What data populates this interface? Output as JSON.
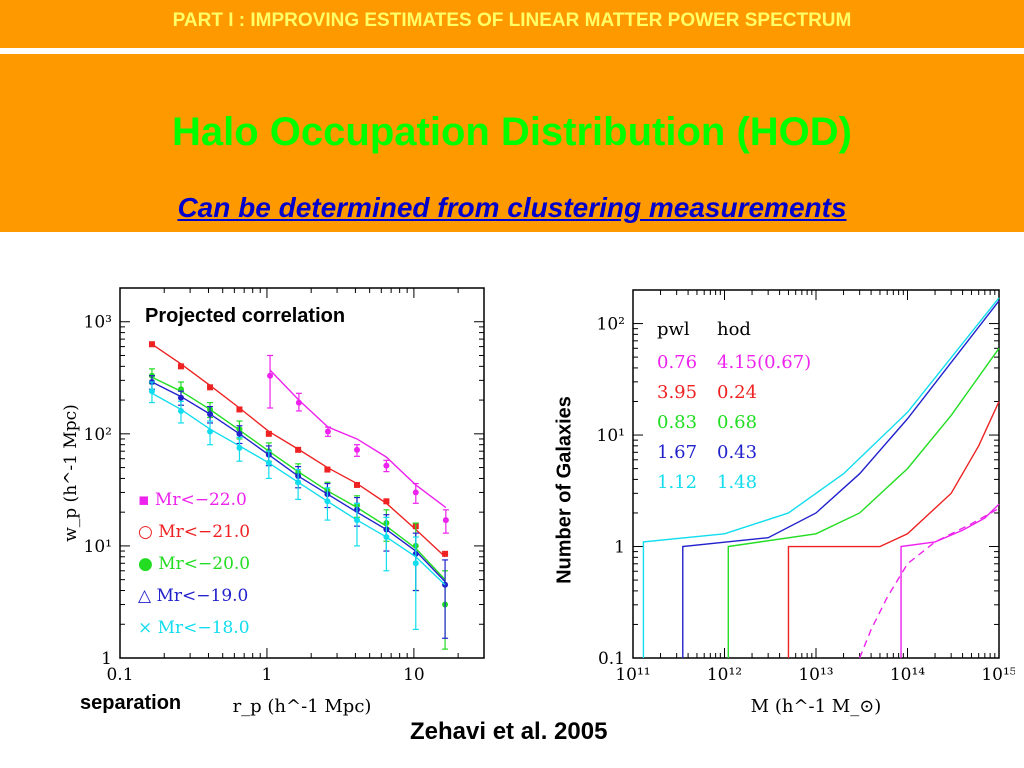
{
  "header": {
    "part_title": "PART I : IMPROVING ESTIMATES OF LINEAR MATTER POWER SPECTRUM",
    "title": "Halo Occupation Distribution (HOD)",
    "subtitle": "Can be determined from clustering measurements"
  },
  "annotations": {
    "left_plot_label": "Projected correlation",
    "left_xlabel_word": "separation",
    "right_ylabel_word": "Number of Galaxies",
    "citation": "Zehavi et al. 2005"
  },
  "colors": {
    "band": "#ff9900",
    "title": "#00ff00",
    "subtitle": "#0000cc",
    "part": "#ffff66"
  },
  "chart_data": [
    {
      "type": "scatter",
      "title": "Projected correlation",
      "xlabel": "r_p (h^-1 Mpc)",
      "ylabel": "w_p (h^-1 Mpc)",
      "xscale": "log",
      "yscale": "log",
      "xlim": [
        0.1,
        30
      ],
      "ylim": [
        1,
        2000
      ],
      "xticks": [
        {
          "v": 0.1,
          "label": "0.1"
        },
        {
          "v": 1,
          "label": "1"
        },
        {
          "v": 10,
          "label": "10"
        }
      ],
      "yticks": [
        {
          "v": 1,
          "label": "1"
        },
        {
          "v": 10,
          "label": "10¹"
        },
        {
          "v": 100,
          "label": "10²"
        },
        {
          "v": 1000,
          "label": "10³"
        }
      ],
      "legend_position": "lower-left",
      "series": [
        {
          "name": "M_r<−22.0",
          "legend": "▪ Mr<−22.0",
          "color": "#ee22ee",
          "x": [
            1.05,
            1.65,
            2.6,
            4.1,
            6.5,
            10.3,
            16.5
          ],
          "y": [
            330,
            190,
            105,
            72,
            52,
            30,
            17
          ],
          "err": [
            [
              170,
              500
            ],
            [
              160,
              230
            ],
            [
              95,
              115
            ],
            [
              63,
              80
            ],
            [
              46,
              58
            ],
            [
              24,
              36
            ],
            [
              13,
              21
            ]
          ],
          "model": [
            [
              1.05,
              370
            ],
            [
              1.65,
              200
            ],
            [
              2.6,
              115
            ],
            [
              4.1,
              90
            ],
            [
              6.5,
              62
            ],
            [
              10.3,
              35
            ],
            [
              16.5,
              22
            ]
          ]
        },
        {
          "name": "M_r<−21.0",
          "legend": "○ Mr<−21.0",
          "color": "#ee2222",
          "x": [
            0.165,
            0.26,
            0.41,
            0.65,
            1.03,
            1.63,
            2.58,
            4.1,
            6.5,
            10.3,
            16.3
          ],
          "y": [
            630,
            400,
            260,
            165,
            100,
            72,
            48,
            35,
            25,
            15,
            8.5
          ],
          "err": null,
          "model": [
            [
              0.165,
              630
            ],
            [
              0.26,
              420
            ],
            [
              0.41,
              270
            ],
            [
              0.65,
              170
            ],
            [
              1.03,
              105
            ],
            [
              1.63,
              73
            ],
            [
              2.58,
              50
            ],
            [
              4.1,
              36
            ],
            [
              6.5,
              24
            ],
            [
              10.3,
              14
            ],
            [
              16.3,
              8
            ]
          ]
        },
        {
          "name": "M_r<−20.0",
          "legend": "● Mr<−20.0",
          "color": "#22dd22",
          "x": [
            0.165,
            0.26,
            0.41,
            0.65,
            1.03,
            1.63,
            2.58,
            4.1,
            6.5,
            10.3,
            16.3
          ],
          "y": [
            330,
            250,
            165,
            110,
            70,
            45,
            31,
            23,
            16,
            10,
            3
          ],
          "err": [
            [
              280,
              380
            ],
            [
              210,
              290
            ],
            [
              140,
              190
            ],
            [
              90,
              130
            ],
            [
              57,
              83
            ],
            [
              36,
              54
            ],
            [
              25,
              37
            ],
            [
              18,
              28
            ],
            [
              11,
              21
            ],
            [
              4,
              16
            ],
            [
              1.2,
              6
            ]
          ],
          "model": [
            [
              0.165,
              320
            ],
            [
              0.26,
              240
            ],
            [
              0.41,
              165
            ],
            [
              0.65,
              108
            ],
            [
              1.03,
              70
            ],
            [
              1.63,
              46
            ],
            [
              2.58,
              31
            ],
            [
              4.1,
              22
            ],
            [
              6.5,
              15
            ],
            [
              10.3,
              9.5
            ],
            [
              16.3,
              5
            ]
          ]
        },
        {
          "name": "M_r<−19.0",
          "legend": "△ Mr<−19.0",
          "color": "#2222cc",
          "x": [
            0.165,
            0.26,
            0.41,
            0.65,
            1.03,
            1.63,
            2.58,
            4.1,
            6.5,
            10.3,
            16.3
          ],
          "y": [
            290,
            210,
            150,
            100,
            65,
            42,
            29,
            21,
            14,
            8.5,
            4.5
          ],
          "err": [
            [
              250,
              330
            ],
            [
              180,
              240
            ],
            [
              125,
              175
            ],
            [
              82,
              118
            ],
            [
              52,
              78
            ],
            [
              33,
              51
            ],
            [
              22,
              36
            ],
            [
              15,
              27
            ],
            [
              9,
              19
            ],
            [
              4,
              13
            ],
            [
              1.5,
              7.5
            ]
          ],
          "model": [
            [
              0.165,
              290
            ],
            [
              0.26,
              215
            ],
            [
              0.41,
              150
            ],
            [
              0.65,
              100
            ],
            [
              1.03,
              65
            ],
            [
              1.63,
              42
            ],
            [
              2.58,
              29
            ],
            [
              4.1,
              20
            ],
            [
              6.5,
              14
            ],
            [
              10.3,
              9
            ],
            [
              16.3,
              4.8
            ]
          ]
        },
        {
          "name": "M_r<−18.0",
          "legend": "× Mr<−18.0",
          "color": "#11ddee",
          "x": [
            0.165,
            0.26,
            0.41,
            0.65,
            1.03,
            1.63,
            2.58,
            4.1,
            6.5,
            10.3
          ],
          "y": [
            240,
            160,
            105,
            75,
            55,
            37,
            25,
            17,
            12,
            7
          ],
          "err": [
            [
              190,
              290
            ],
            [
              125,
              195
            ],
            [
              80,
              130
            ],
            [
              57,
              93
            ],
            [
              40,
              70
            ],
            [
              26,
              48
            ],
            [
              17,
              33
            ],
            [
              10,
              24
            ],
            [
              6,
              18
            ],
            [
              1.8,
              12
            ]
          ],
          "model": [
            [
              0.165,
              230
            ],
            [
              0.26,
              165
            ],
            [
              0.41,
              110
            ],
            [
              0.65,
              78
            ],
            [
              1.03,
              55
            ],
            [
              1.63,
              37
            ],
            [
              2.58,
              25
            ],
            [
              4.1,
              17
            ],
            [
              6.5,
              12
            ],
            [
              10.3,
              8
            ],
            [
              16.3,
              4.5
            ]
          ]
        }
      ]
    },
    {
      "type": "line",
      "xlabel": "M (h^-1 M_⊙)",
      "ylabel": "Number of Galaxies",
      "xscale": "log",
      "yscale": "log",
      "xlim": [
        100000000000.0,
        1000000000000000.0
      ],
      "ylim": [
        0.1,
        200
      ],
      "xticks": [
        {
          "v": 100000000000.0,
          "label": "10¹¹"
        },
        {
          "v": 1000000000000.0,
          "label": "10¹²"
        },
        {
          "v": 10000000000000.0,
          "label": "10¹³"
        },
        {
          "v": 100000000000000.0,
          "label": "10¹⁴"
        },
        {
          "v": 1000000000000000.0,
          "label": "10¹⁵"
        }
      ],
      "yticks": [
        {
          "v": 0.1,
          "label": "0.1"
        },
        {
          "v": 1,
          "label": "1"
        },
        {
          "v": 10,
          "label": "10¹"
        },
        {
          "v": 100,
          "label": "10²"
        }
      ],
      "legend_header": [
        "pwl",
        "hod"
      ],
      "legend_position": "top-left",
      "series": [
        {
          "pwl": "0.76",
          "hod": "4.15(0.67)",
          "color": "#ee22ee",
          "x": [
            85000000000000.0,
            85000000000000.0,
            200000000000000.0,
            400000000000000.0,
            700000000000000.0,
            1000000000000000.0
          ],
          "y": [
            0.1,
            1,
            1.1,
            1.4,
            1.8,
            2.4
          ]
        },
        {
          "pwl": "3.95",
          "hod": "0.24",
          "color": "#ee2222",
          "x": [
            5000000000000.0,
            5000000000000.0,
            50000000000000.0,
            100000000000000.0,
            300000000000000.0,
            600000000000000.0,
            1000000000000000.0
          ],
          "y": [
            0.1,
            1,
            1,
            1.3,
            3,
            8,
            20
          ]
        },
        {
          "pwl": "0.83",
          "hod": "0.68",
          "color": "#22dd22",
          "x": [
            1100000000000.0,
            1100000000000.0,
            10000000000000.0,
            30000000000000.0,
            100000000000000.0,
            300000000000000.0,
            1000000000000000.0
          ],
          "y": [
            0.1,
            1,
            1.3,
            2,
            5,
            15,
            60
          ]
        },
        {
          "pwl": "1.67",
          "hod": "0.43",
          "color": "#2222cc",
          "x": [
            350000000000.0,
            350000000000.0,
            3000000000000.0,
            10000000000000.0,
            30000000000000.0,
            100000000000000.0,
            1000000000000000.0
          ],
          "y": [
            0.1,
            1,
            1.2,
            2,
            4.5,
            14,
            160
          ]
        },
        {
          "pwl": "1.12",
          "hod": "1.48",
          "color": "#11ddee",
          "x": [
            130000000000.0,
            130000000000.0,
            1000000000000.0,
            5000000000000.0,
            20000000000000.0,
            100000000000000.0,
            1000000000000000.0
          ],
          "y": [
            0.1,
            1.1,
            1.3,
            2,
            4.5,
            16,
            170
          ]
        },
        {
          "color": "#ee22ee",
          "dashed": true,
          "x": [
            30000000000000.0,
            40000000000000.0,
            60000000000000.0,
            100000000000000.0,
            200000000000000.0,
            500000000000000.0,
            1000000000000000.0
          ],
          "y": [
            0.1,
            0.18,
            0.35,
            0.7,
            1.1,
            1.6,
            2.2
          ]
        }
      ]
    }
  ]
}
